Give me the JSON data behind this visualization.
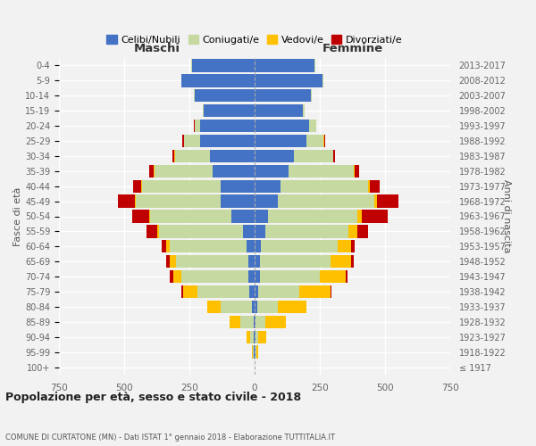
{
  "age_groups": [
    "100+",
    "95-99",
    "90-94",
    "85-89",
    "80-84",
    "75-79",
    "70-74",
    "65-69",
    "60-64",
    "55-59",
    "50-54",
    "45-49",
    "40-44",
    "35-39",
    "30-34",
    "25-29",
    "20-24",
    "15-19",
    "10-14",
    "5-9",
    "0-4"
  ],
  "birth_years": [
    "≤ 1917",
    "1918-1922",
    "1923-1927",
    "1928-1932",
    "1933-1937",
    "1938-1942",
    "1943-1947",
    "1948-1952",
    "1953-1957",
    "1958-1962",
    "1963-1967",
    "1968-1972",
    "1973-1977",
    "1978-1982",
    "1983-1987",
    "1988-1992",
    "1993-1997",
    "1998-2002",
    "2003-2007",
    "2008-2012",
    "2013-2017"
  ],
  "males": {
    "celibi": [
      0,
      2,
      3,
      5,
      10,
      20,
      25,
      25,
      30,
      45,
      90,
      130,
      130,
      160,
      170,
      210,
      210,
      195,
      230,
      280,
      240
    ],
    "coniugati": [
      0,
      5,
      15,
      50,
      120,
      200,
      255,
      275,
      295,
      320,
      310,
      325,
      300,
      225,
      135,
      60,
      20,
      5,
      2,
      2,
      2
    ],
    "vedovi": [
      0,
      3,
      12,
      40,
      50,
      55,
      30,
      25,
      15,
      10,
      5,
      5,
      5,
      3,
      2,
      2,
      1,
      0,
      0,
      0,
      0
    ],
    "divorziati": [
      0,
      0,
      0,
      0,
      0,
      5,
      15,
      15,
      15,
      40,
      65,
      65,
      30,
      15,
      8,
      5,
      2,
      0,
      0,
      0,
      0
    ]
  },
  "females": {
    "nubili": [
      0,
      2,
      3,
      5,
      10,
      15,
      20,
      20,
      25,
      40,
      50,
      90,
      100,
      130,
      150,
      200,
      210,
      185,
      215,
      260,
      230
    ],
    "coniugate": [
      0,
      5,
      10,
      35,
      80,
      155,
      230,
      270,
      295,
      320,
      345,
      370,
      335,
      250,
      150,
      65,
      25,
      8,
      3,
      2,
      2
    ],
    "vedove": [
      0,
      8,
      30,
      80,
      110,
      120,
      100,
      80,
      50,
      35,
      15,
      10,
      8,
      5,
      3,
      2,
      1,
      0,
      0,
      0,
      0
    ],
    "divorziate": [
      0,
      0,
      0,
      0,
      0,
      5,
      5,
      10,
      15,
      40,
      100,
      80,
      35,
      15,
      5,
      3,
      1,
      0,
      0,
      0,
      0
    ]
  },
  "colors": {
    "celibi": "#4472c4",
    "coniugati": "#c5d9a0",
    "vedovi": "#ffc000",
    "divorziati": "#c00000"
  },
  "legend_labels": [
    "Celibi/Nubili",
    "Coniugati/e",
    "Vedovi/e",
    "Divorziati/e"
  ],
  "title": "Popolazione per età, sesso e stato civile - 2018",
  "subtitle": "COMUNE DI CURTATONE (MN) - Dati ISTAT 1° gennaio 2018 - Elaborazione TUTTITALIA.IT",
  "xlabel_left": "Maschi",
  "xlabel_right": "Femmine",
  "ylabel_left": "Fasce di età",
  "ylabel_right": "Anni di nascita",
  "xlim": 750,
  "bg_color": "#f2f2f2",
  "grid_color": "#ffffff",
  "bar_height": 0.85
}
